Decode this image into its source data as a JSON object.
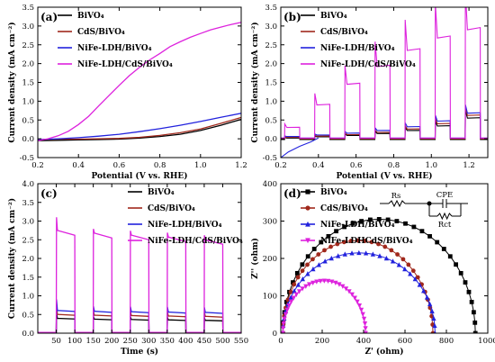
{
  "colors": {
    "black": "#000000",
    "brown": "#a0281c",
    "blue": "#2222dd",
    "magenta": "#dd22dd"
  },
  "chart_data": [
    {
      "panel": "(a)",
      "type": "line",
      "xlabel": "Potential (V vs. RHE)",
      "ylabel": "Current density (mA cm⁻²)",
      "xlim": [
        0.2,
        1.2
      ],
      "ylim": [
        -0.5,
        3.5
      ],
      "xticks": [
        "0.2",
        "0.4",
        "0.6",
        "0.8",
        "1.0",
        "1.2"
      ],
      "yticks": [
        "-0.5",
        "0.0",
        "0.5",
        "1.0",
        "1.5",
        "2.0",
        "2.5",
        "3.0",
        "3.5"
      ],
      "legend_position": "top-left",
      "series": [
        {
          "name": "BiVO₄",
          "color": "#000000",
          "x": [
            0.2,
            0.3,
            0.4,
            0.5,
            0.6,
            0.7,
            0.8,
            0.9,
            1.0,
            1.1,
            1.22
          ],
          "y": [
            -0.05,
            -0.04,
            -0.03,
            -0.02,
            -0.01,
            0.02,
            0.06,
            0.12,
            0.22,
            0.36,
            0.55
          ]
        },
        {
          "name": "CdS/BiVO₄",
          "color": "#a0281c",
          "x": [
            0.2,
            0.3,
            0.4,
            0.5,
            0.6,
            0.7,
            0.8,
            0.9,
            1.0,
            1.1,
            1.22
          ],
          "y": [
            -0.02,
            -0.01,
            -0.01,
            0.0,
            0.01,
            0.04,
            0.09,
            0.16,
            0.26,
            0.41,
            0.6
          ]
        },
        {
          "name": "NiFe-LDH/BiVO₄",
          "color": "#2222dd",
          "x": [
            0.2,
            0.3,
            0.4,
            0.5,
            0.6,
            0.7,
            0.8,
            0.9,
            1.0,
            1.1,
            1.22
          ],
          "y": [
            -0.02,
            0.0,
            0.03,
            0.07,
            0.12,
            0.19,
            0.27,
            0.36,
            0.46,
            0.57,
            0.7
          ]
        },
        {
          "name": "NiFe-LDH/CdS/BiVO₄",
          "color": "#dd22dd",
          "x": [
            0.2,
            0.25,
            0.3,
            0.35,
            0.4,
            0.45,
            0.5,
            0.55,
            0.6,
            0.65,
            0.7,
            0.75,
            0.8,
            0.85,
            0.9,
            0.95,
            1.0,
            1.05,
            1.1,
            1.15,
            1.22
          ],
          "y": [
            -0.05,
            0.0,
            0.08,
            0.2,
            0.38,
            0.6,
            0.88,
            1.15,
            1.42,
            1.68,
            1.9,
            2.1,
            2.27,
            2.45,
            2.58,
            2.7,
            2.8,
            2.9,
            2.97,
            3.04,
            3.12
          ]
        }
      ]
    },
    {
      "panel": "(b)",
      "type": "line",
      "xlabel": "Potential (V vs. RHE)",
      "ylabel": "Current density (mA cm⁻²)",
      "xlim": [
        0.2,
        1.3
      ],
      "ylim": [
        -0.5,
        3.5
      ],
      "xticks": [
        "0.2",
        "0.4",
        "0.6",
        "0.8",
        "1.0",
        "1.2"
      ],
      "yticks": [
        "-0.5",
        "0.0",
        "0.5",
        "1.0",
        "1.5",
        "2.0",
        "2.5",
        "3.0",
        "3.5"
      ],
      "legend_position": "top-left",
      "note": "chopped-light LSV; light-on intervals begin at each potential listed",
      "light_on_potentials": [
        0.22,
        0.38,
        0.54,
        0.7,
        0.86,
        1.02,
        1.18
      ],
      "light_interval_width": 0.08,
      "series": [
        {
          "name": "BiVO₄",
          "color": "#000000",
          "dark": -0.02,
          "light": [
            0.02,
            0.05,
            0.09,
            0.14,
            0.22,
            0.34,
            0.55
          ]
        },
        {
          "name": "CdS/BiVO₄",
          "color": "#a0281c",
          "dark": 0.0,
          "light": [
            0.04,
            0.07,
            0.11,
            0.17,
            0.26,
            0.4,
            0.62
          ]
        },
        {
          "name": "NiFe-LDH/BiVO₄",
          "color": "#2222dd",
          "dark": 0.02,
          "light": [
            0.06,
            0.1,
            0.15,
            0.22,
            0.32,
            0.47,
            0.68
          ]
        },
        {
          "name": "NiFe-LDH/CdS/BiVO₄",
          "color": "#dd22dd",
          "dark": 0.02,
          "light": [
            0.3,
            0.9,
            1.45,
            1.92,
            2.35,
            2.68,
            2.9
          ]
        }
      ]
    },
    {
      "panel": "(c)",
      "type": "line",
      "xlabel": "Time (s)",
      "ylabel": "Current density (mA cm⁻²)",
      "xlim": [
        0,
        550
      ],
      "ylim": [
        0.0,
        4.0
      ],
      "xticks": [
        "50",
        "100",
        "150",
        "200",
        "250",
        "300",
        "350",
        "400",
        "450",
        "500",
        "550"
      ],
      "yticks": [
        "0.0",
        "0.5",
        "1.0",
        "1.5",
        "2.0",
        "2.5",
        "3.0",
        "3.5",
        "4.0"
      ],
      "legend_position": "top-right",
      "light_on_intervals": [
        [
          50,
          100
        ],
        [
          150,
          200
        ],
        [
          250,
          300
        ],
        [
          350,
          400
        ],
        [
          450,
          500
        ]
      ],
      "series": [
        {
          "name": "BiVO₄",
          "color": "#000000",
          "dark": 0.02,
          "spike": 0.55,
          "steady": [
            0.38,
            0.36,
            0.35,
            0.34,
            0.33
          ]
        },
        {
          "name": "CdS/BiVO₄",
          "color": "#a0281c",
          "dark": 0.02,
          "spike": 0.75,
          "steady": [
            0.48,
            0.46,
            0.45,
            0.44,
            0.43
          ]
        },
        {
          "name": "NiFe-LDH/BiVO₄",
          "color": "#2222dd",
          "dark": 0.02,
          "spike": 0.9,
          "steady": [
            0.58,
            0.56,
            0.55,
            0.54,
            0.53
          ]
        },
        {
          "name": "NiFe-LDH/CdS/BiVO₄",
          "color": "#dd22dd",
          "dark": 0.02,
          "spike": 3.1,
          "steady": [
            2.62,
            2.55,
            2.5,
            2.45,
            2.38
          ]
        }
      ]
    },
    {
      "panel": "(d)",
      "type": "scatter",
      "xlabel": "Z' (ohm)",
      "ylabel": "Z'' (ohm)",
      "xlim": [
        0,
        1000
      ],
      "ylim": [
        0,
        400
      ],
      "xticks": [
        "0",
        "200",
        "400",
        "600",
        "800",
        "1000"
      ],
      "yticks": [
        "0",
        "100",
        "200",
        "300",
        "400"
      ],
      "legend_position": "top-left",
      "circuit": {
        "r1": "Rs",
        "r2": "Rct",
        "c": "CPE"
      },
      "series": [
        {
          "name": "BiVO₄",
          "color": "#000000",
          "marker": "square",
          "x_start": 10,
          "x_end": 940,
          "peak": 305
        },
        {
          "name": "CdS/BiVO₄",
          "color": "#a0281c",
          "marker": "circle",
          "x_start": 10,
          "x_end": 735,
          "peak": 248
        },
        {
          "name": "NiFe-LDH/BiVO₄",
          "color": "#2222dd",
          "marker": "triangle",
          "x_start": 10,
          "x_end": 745,
          "peak": 215
        },
        {
          "name": "NiFe-LDHCdS/BiVO₄",
          "color": "#dd22dd",
          "marker": "triangle-down",
          "x_start": 10,
          "x_end": 410,
          "peak": 140
        }
      ]
    }
  ]
}
